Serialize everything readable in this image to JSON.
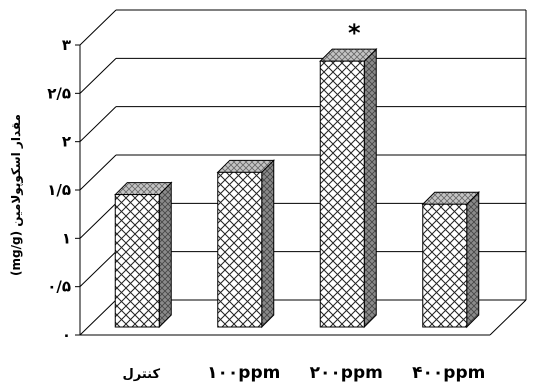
{
  "chart_data": {
    "type": "bar",
    "style": "3d-column",
    "categories": [
      "کنترل",
      "۱۰۰ppm",
      "۲۰۰ppm",
      "۴۰۰ppm"
    ],
    "values": [
      1.37,
      1.6,
      2.75,
      1.27
    ],
    "ylabel": "(mg/g) مقدار اسکوپولامین",
    "ylim": [
      0,
      3
    ],
    "yticks": [
      "۰",
      "۰/۵",
      "۱",
      "۱/۵",
      "۲",
      "۲/۵",
      "۳"
    ],
    "grid": true,
    "annotations": [
      {
        "category": "۲۰۰ppm",
        "text": "*"
      }
    ],
    "colors": {
      "front": "#ffffff",
      "hatch": "#222222",
      "side": "#8a8a8a",
      "top": "#b8b8b8"
    }
  }
}
